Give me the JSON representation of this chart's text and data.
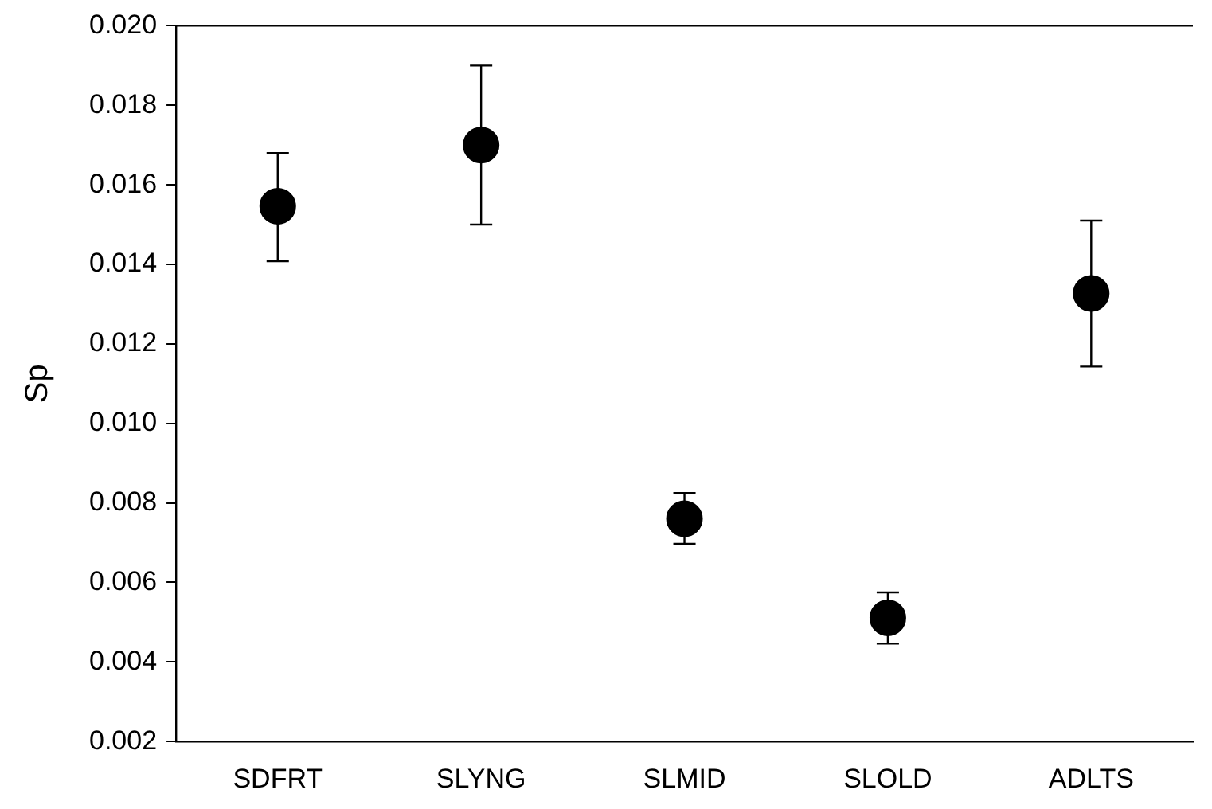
{
  "chart_data": {
    "type": "scatter",
    "ylabel": "Sp",
    "categories": [
      "SDFRT",
      "SLYNG",
      "SLMID",
      "SLOLD",
      "ADLTS"
    ],
    "series": [
      {
        "color": "#000000",
        "values": [
          0.01546,
          0.017,
          0.0076,
          0.00511,
          0.01327
        ],
        "errors": [
          [
            0.01408,
            0.0168
          ],
          [
            0.015,
            0.019
          ],
          [
            0.00697,
            0.00825
          ],
          [
            0.00446,
            0.00575
          ],
          [
            0.01143,
            0.0151
          ]
        ]
      }
    ],
    "ylim": [
      0.002,
      0.02
    ],
    "yticks": [
      0.002,
      0.004,
      0.006,
      0.008,
      {
        "value": 0.01,
        "label": "0.010"
      },
      0.012,
      0.014,
      0.016,
      0.018,
      {
        "value": 0.02,
        "label": "0.020"
      }
    ],
    "grid": false,
    "legend": false,
    "marker": "circle"
  }
}
